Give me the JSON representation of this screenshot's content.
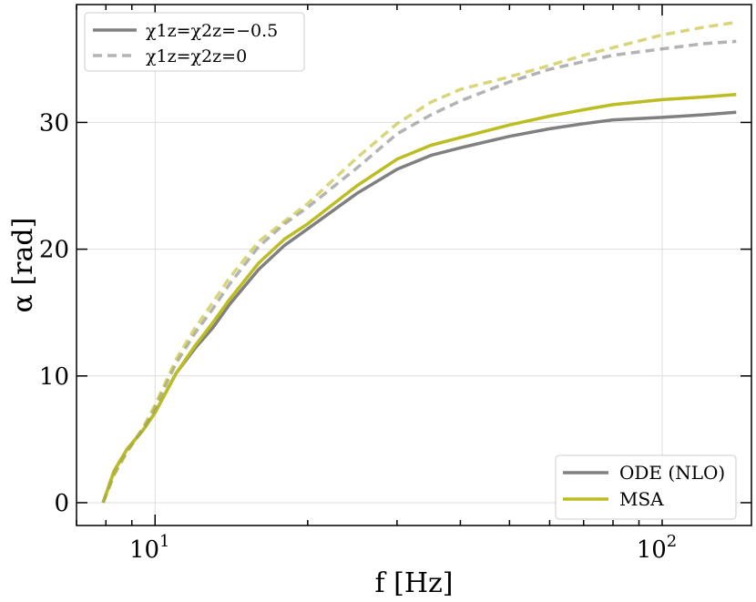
{
  "chart_data": {
    "type": "line",
    "title": "",
    "xlabel": "f [Hz]",
    "ylabel": "α [rad]",
    "xscale": "log",
    "xlim": [
      7.0,
      150
    ],
    "ylim": [
      -1.8,
      39.3
    ],
    "grid": true,
    "x_ticks": [
      10,
      100
    ],
    "x_tick_labels": [
      "10^1",
      "10^2"
    ],
    "y_ticks": [
      0,
      10,
      20,
      30
    ],
    "y_tick_labels": [
      "0",
      "10",
      "20",
      "30"
    ],
    "linestyle_legend": {
      "placement": "top-left",
      "entries": [
        {
          "style": "solid",
          "label": "χ1z=χ2z=−0.5"
        },
        {
          "style": "dashed",
          "label": "χ1z=χ2z=0"
        }
      ]
    },
    "model_legend": {
      "placement": "bottom-right",
      "entries": [
        {
          "label": "ODE (NLO)",
          "color": "#808080"
        },
        {
          "label": "MSA",
          "color": "#bcbd22"
        }
      ]
    },
    "series": [
      {
        "name": "ODE (NLO), χ1z=χ2z=−0.5",
        "color": "#808080",
        "style": "solid",
        "opacity": 1.0,
        "x": [
          7.9,
          8.3,
          8.8,
          9.5,
          10,
          11,
          12,
          13,
          14,
          16,
          18,
          20,
          25,
          30,
          35,
          40,
          50,
          60,
          70,
          80,
          100,
          120,
          140
        ],
        "y": [
          0,
          2.5,
          4.2,
          5.8,
          7.1,
          10.2,
          12.2,
          13.8,
          15.6,
          18.4,
          20.3,
          21.6,
          24.4,
          26.3,
          27.4,
          28.0,
          28.9,
          29.5,
          29.9,
          30.2,
          30.4,
          30.6,
          30.8
        ]
      },
      {
        "name": "MSA, χ1z=χ2z=−0.5",
        "color": "#bcbd22",
        "style": "solid",
        "opacity": 1.0,
        "x": [
          7.9,
          8.3,
          8.8,
          9.5,
          10,
          11,
          12,
          13,
          14,
          16,
          18,
          20,
          25,
          30,
          35,
          40,
          50,
          60,
          70,
          80,
          100,
          120,
          140
        ],
        "y": [
          0,
          2.5,
          4.2,
          5.8,
          7.1,
          10.2,
          12.4,
          14.2,
          16.0,
          18.9,
          20.8,
          22.0,
          25.0,
          27.1,
          28.2,
          28.8,
          29.8,
          30.5,
          31.0,
          31.4,
          31.8,
          32.0,
          32.2
        ]
      },
      {
        "name": "ODE (NLO), χ1z=χ2z=0",
        "color": "#808080",
        "style": "dashed",
        "opacity": 0.6,
        "x": [
          7.9,
          8.3,
          8.8,
          9.5,
          10,
          11,
          12,
          13,
          14,
          16,
          18,
          20,
          25,
          30,
          35,
          40,
          50,
          60,
          70,
          80,
          100,
          120,
          140
        ],
        "y": [
          0,
          2.2,
          4.0,
          5.9,
          7.5,
          11.0,
          13.4,
          15.3,
          17.2,
          20.2,
          22.0,
          23.3,
          26.4,
          29.1,
          30.6,
          31.7,
          33.2,
          34.2,
          34.8,
          35.3,
          35.8,
          36.2,
          36.4
        ]
      },
      {
        "name": "MSA, χ1z=χ2z=0",
        "color": "#bcbd22",
        "style": "dashed",
        "opacity": 0.6,
        "x": [
          7.9,
          8.3,
          8.8,
          9.5,
          10,
          11,
          12,
          13,
          14,
          16,
          18,
          20,
          25,
          30,
          35,
          40,
          50,
          60,
          70,
          80,
          100,
          120,
          140
        ],
        "y": [
          0,
          2.2,
          4.0,
          6.0,
          7.7,
          11.3,
          13.8,
          15.8,
          17.7,
          20.6,
          22.2,
          23.6,
          27.2,
          29.9,
          31.6,
          32.6,
          33.6,
          34.5,
          35.3,
          35.9,
          36.9,
          37.5,
          37.9
        ]
      }
    ]
  }
}
